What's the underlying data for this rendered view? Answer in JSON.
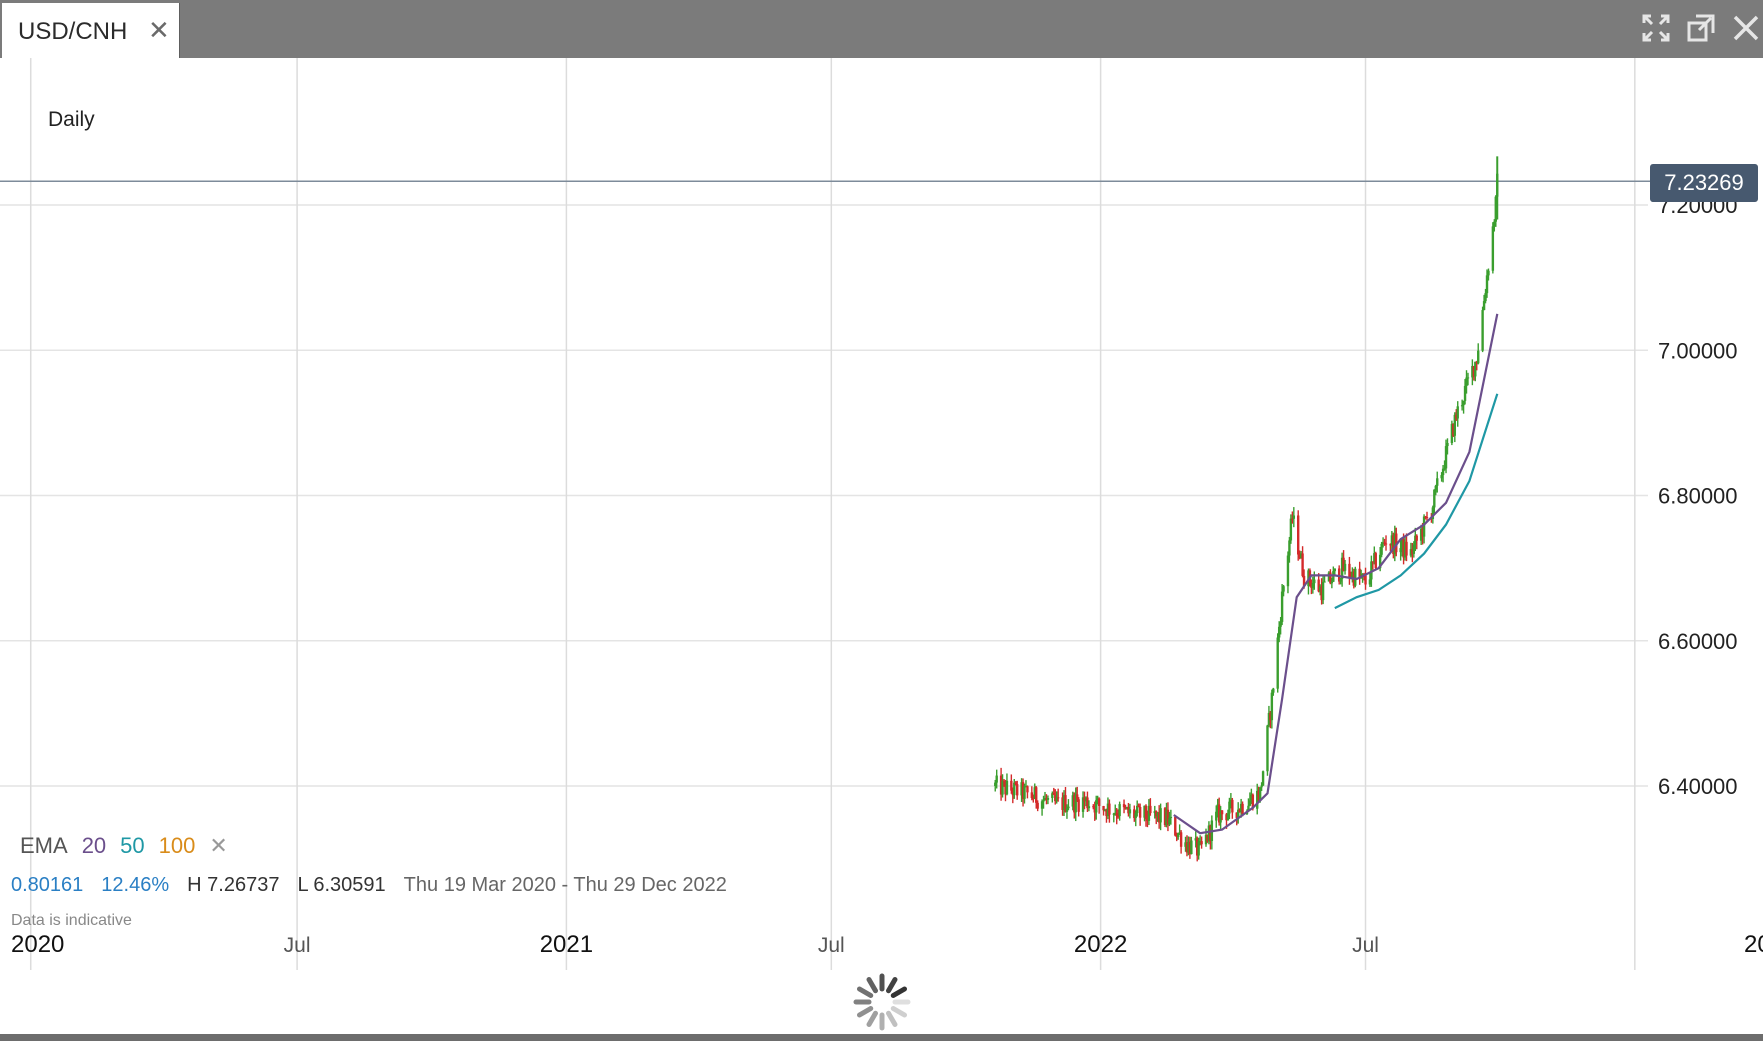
{
  "window": {
    "tab_title": "USD/CNH",
    "tab_close_icon": "close-icon",
    "window_icons": [
      "fullscreen-icon",
      "popout-icon",
      "close-icon"
    ]
  },
  "chart": {
    "interval_label": "Daily",
    "current_price_label": "7.23269"
  },
  "indicators": {
    "name": "EMA",
    "periods": [
      "20",
      "50",
      "100"
    ],
    "colors": [
      "#6b4f8c",
      "#1f98a5",
      "#d98c1a"
    ],
    "remove_icon": "close-icon",
    "remove_glyph": "✕"
  },
  "stats": {
    "change": "0.80161",
    "change_pct": "12.46%",
    "high": "H 7.26737",
    "low": "L 6.30591",
    "date_range": "Thu 19 Mar 2020 - Thu 29 Dec 2022"
  },
  "note": "Data is indicative",
  "chart_data": {
    "type": "candlestick",
    "title": "USD/CNH",
    "xlabel": "",
    "ylabel": "",
    "ylim": [
      6.2,
      7.4
    ],
    "y_ticks": [
      "7.20000",
      "7.00000",
      "6.80000",
      "6.60000",
      "6.40000"
    ],
    "y_tick_values": [
      7.2,
      7.0,
      6.8,
      6.6,
      6.4
    ],
    "x_ticks": [
      "2020",
      "Jul",
      "2021",
      "Jul",
      "2022",
      "Jul",
      "20"
    ],
    "x_tick_dates": [
      "2020-01-01",
      "2020-07-01",
      "2021-01-01",
      "2021-07-01",
      "2022-01-01",
      "2022-07-01",
      "2023-01-01"
    ],
    "x_tick_bold": [
      true,
      false,
      true,
      false,
      true,
      false,
      true
    ],
    "xlim": [
      "2019-12-11",
      "2023-01-10"
    ],
    "current_price": 7.23269,
    "colors": {
      "up": "#3a9e2e",
      "down": "#d42a2a",
      "ema20": "#6b4f8c",
      "ema50": "#1f98a5"
    },
    "price_path": [
      [
        "2021-10-21",
        6.4
      ],
      [
        "2021-11-10",
        6.39
      ],
      [
        "2021-12-01",
        6.375
      ],
      [
        "2021-12-20",
        6.38
      ],
      [
        "2022-01-05",
        6.37
      ],
      [
        "2022-01-25",
        6.36
      ],
      [
        "2022-02-15",
        6.355
      ],
      [
        "2022-03-01",
        6.32
      ],
      [
        "2022-03-10",
        6.31
      ],
      [
        "2022-03-22",
        6.36
      ],
      [
        "2022-04-05",
        6.37
      ],
      [
        "2022-04-20",
        6.39
      ],
      [
        "2022-04-28",
        6.52
      ],
      [
        "2022-05-05",
        6.66
      ],
      [
        "2022-05-12",
        6.77
      ],
      [
        "2022-05-20",
        6.69
      ],
      [
        "2022-06-01",
        6.67
      ],
      [
        "2022-06-15",
        6.7
      ],
      [
        "2022-07-01",
        6.68
      ],
      [
        "2022-07-15",
        6.74
      ],
      [
        "2022-08-01",
        6.72
      ],
      [
        "2022-08-15",
        6.78
      ],
      [
        "2022-09-01",
        6.91
      ],
      [
        "2022-09-15",
        6.99
      ],
      [
        "2022-09-28",
        7.2
      ],
      [
        "2022-09-29",
        7.23
      ]
    ],
    "series": [
      {
        "name": "20",
        "points": [
          [
            "2022-02-20",
            6.36
          ],
          [
            "2022-03-10",
            6.335
          ],
          [
            "2022-03-25",
            6.34
          ],
          [
            "2022-04-15",
            6.37
          ],
          [
            "2022-04-25",
            6.39
          ],
          [
            "2022-05-05",
            6.52
          ],
          [
            "2022-05-15",
            6.66
          ],
          [
            "2022-05-25",
            6.69
          ],
          [
            "2022-06-10",
            6.69
          ],
          [
            "2022-06-25",
            6.685
          ],
          [
            "2022-07-10",
            6.7
          ],
          [
            "2022-07-25",
            6.74
          ],
          [
            "2022-08-10",
            6.76
          ],
          [
            "2022-08-25",
            6.79
          ],
          [
            "2022-09-10",
            6.86
          ],
          [
            "2022-09-29",
            7.05
          ]
        ]
      },
      {
        "name": "50",
        "points": [
          [
            "2022-06-10",
            6.645
          ],
          [
            "2022-06-25",
            6.66
          ],
          [
            "2022-07-10",
            6.67
          ],
          [
            "2022-07-25",
            6.69
          ],
          [
            "2022-08-10",
            6.72
          ],
          [
            "2022-08-25",
            6.76
          ],
          [
            "2022-09-10",
            6.82
          ],
          [
            "2022-09-29",
            6.94
          ]
        ]
      }
    ]
  }
}
